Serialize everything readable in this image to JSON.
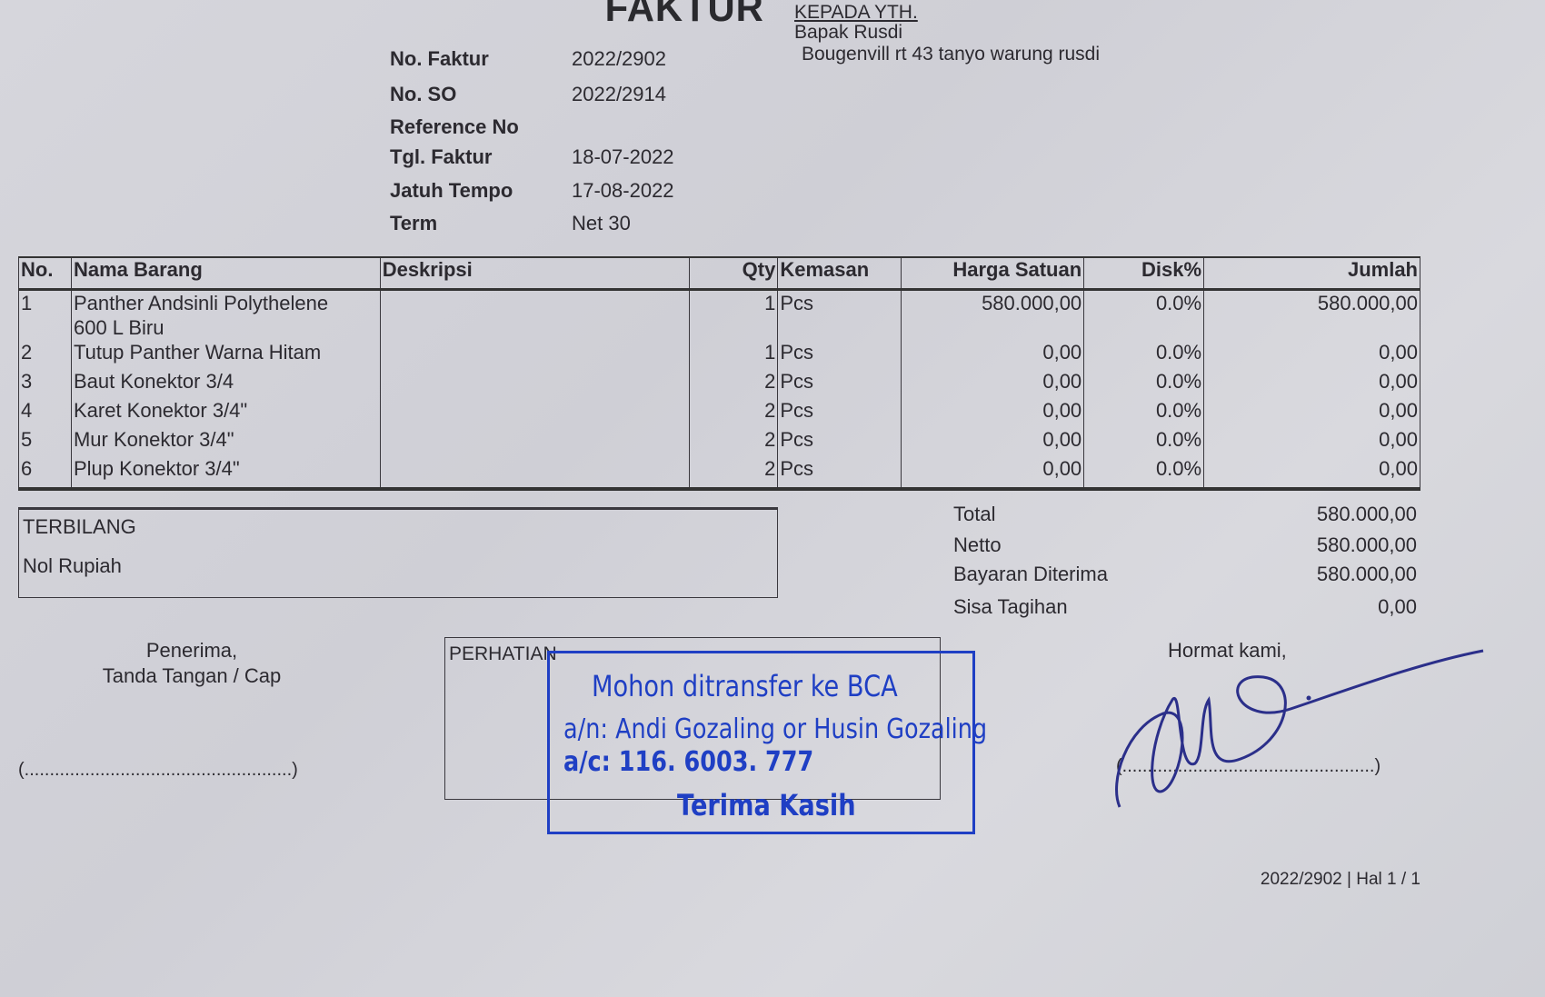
{
  "header": {
    "title": "FAKTUR",
    "recipient_label": "KEPADA YTH.",
    "recipient_name": "Bapak Rusdi",
    "recipient_address": "Bougenvill rt 43 tanyo warung rusdi"
  },
  "meta": [
    {
      "label": "No. Faktur",
      "value": "2022/2902"
    },
    {
      "label": "No. SO",
      "value": "2022/2914"
    },
    {
      "label": "Reference No",
      "value": ""
    },
    {
      "label": "Tgl. Faktur",
      "value": "18-07-2022"
    },
    {
      "label": "Jatuh Tempo",
      "value": "17-08-2022"
    },
    {
      "label": "Term",
      "value": "Net 30"
    }
  ],
  "table": {
    "headers": [
      "No.",
      "Nama Barang",
      "Deskripsi",
      "Qty",
      "Kemasan",
      "Harga Satuan",
      "Disk%",
      "Jumlah"
    ],
    "rows": [
      {
        "no": "1",
        "nama_1": "Panther Andsinli Polythelene",
        "nama_2": "600 L Biru",
        "deskripsi": "",
        "qty": "1",
        "kemasan": "Pcs",
        "harga": "580.000,00",
        "disk": "0.0%",
        "jumlah": "580.000,00"
      },
      {
        "no": "2",
        "nama_1": "Tutup Panther Warna Hitam",
        "deskripsi": "",
        "qty": "1",
        "kemasan": "Pcs",
        "harga": "0,00",
        "disk": "0.0%",
        "jumlah": "0,00"
      },
      {
        "no": "3",
        "nama_1": "Baut Konektor 3/4",
        "deskripsi": "",
        "qty": "2",
        "kemasan": "Pcs",
        "harga": "0,00",
        "disk": "0.0%",
        "jumlah": "0,00"
      },
      {
        "no": "4",
        "nama_1": "Karet Konektor 3/4\"",
        "deskripsi": "",
        "qty": "2",
        "kemasan": "Pcs",
        "harga": "0,00",
        "disk": "0.0%",
        "jumlah": "0,00"
      },
      {
        "no": "5",
        "nama_1": "Mur Konektor 3/4\"",
        "deskripsi": "",
        "qty": "2",
        "kemasan": "Pcs",
        "harga": "0,00",
        "disk": "0.0%",
        "jumlah": "0,00"
      },
      {
        "no": "6",
        "nama_1": "Plup Konektor 3/4\"",
        "deskripsi": "",
        "qty": "2",
        "kemasan": "Pcs",
        "harga": "0,00",
        "disk": "0.0%",
        "jumlah": "0,00"
      }
    ]
  },
  "terbilang": {
    "label": "TERBILANG",
    "value": "Nol Rupiah"
  },
  "totals": [
    {
      "label": "Total",
      "value": "580.000,00"
    },
    {
      "label": "Netto",
      "value": "580.000,00"
    },
    {
      "label": "Bayaran Diterima",
      "value": "580.000,00"
    },
    {
      "label": "Sisa Tagihan",
      "value": "0,00"
    }
  ],
  "footer": {
    "receiver_line1": "Penerima,",
    "receiver_line2": "Tanda Tangan / Cap",
    "receiver_sign": "(.....................................................)",
    "perhatian_label": "PERHATIAN",
    "stamp": {
      "line1": "Mohon ditransfer ke BCA",
      "line2": "a/n: Andi Gozaling or Husin Gozaling",
      "line3": "a/c: 116. 6003. 777",
      "line4": "Terima Kasih",
      "color": "#1f3fc4"
    },
    "hormat": "Hormat kami,",
    "sender_sign": "(..................................................)",
    "page_ref": "2022/2902 | Hal 1 / 1"
  }
}
